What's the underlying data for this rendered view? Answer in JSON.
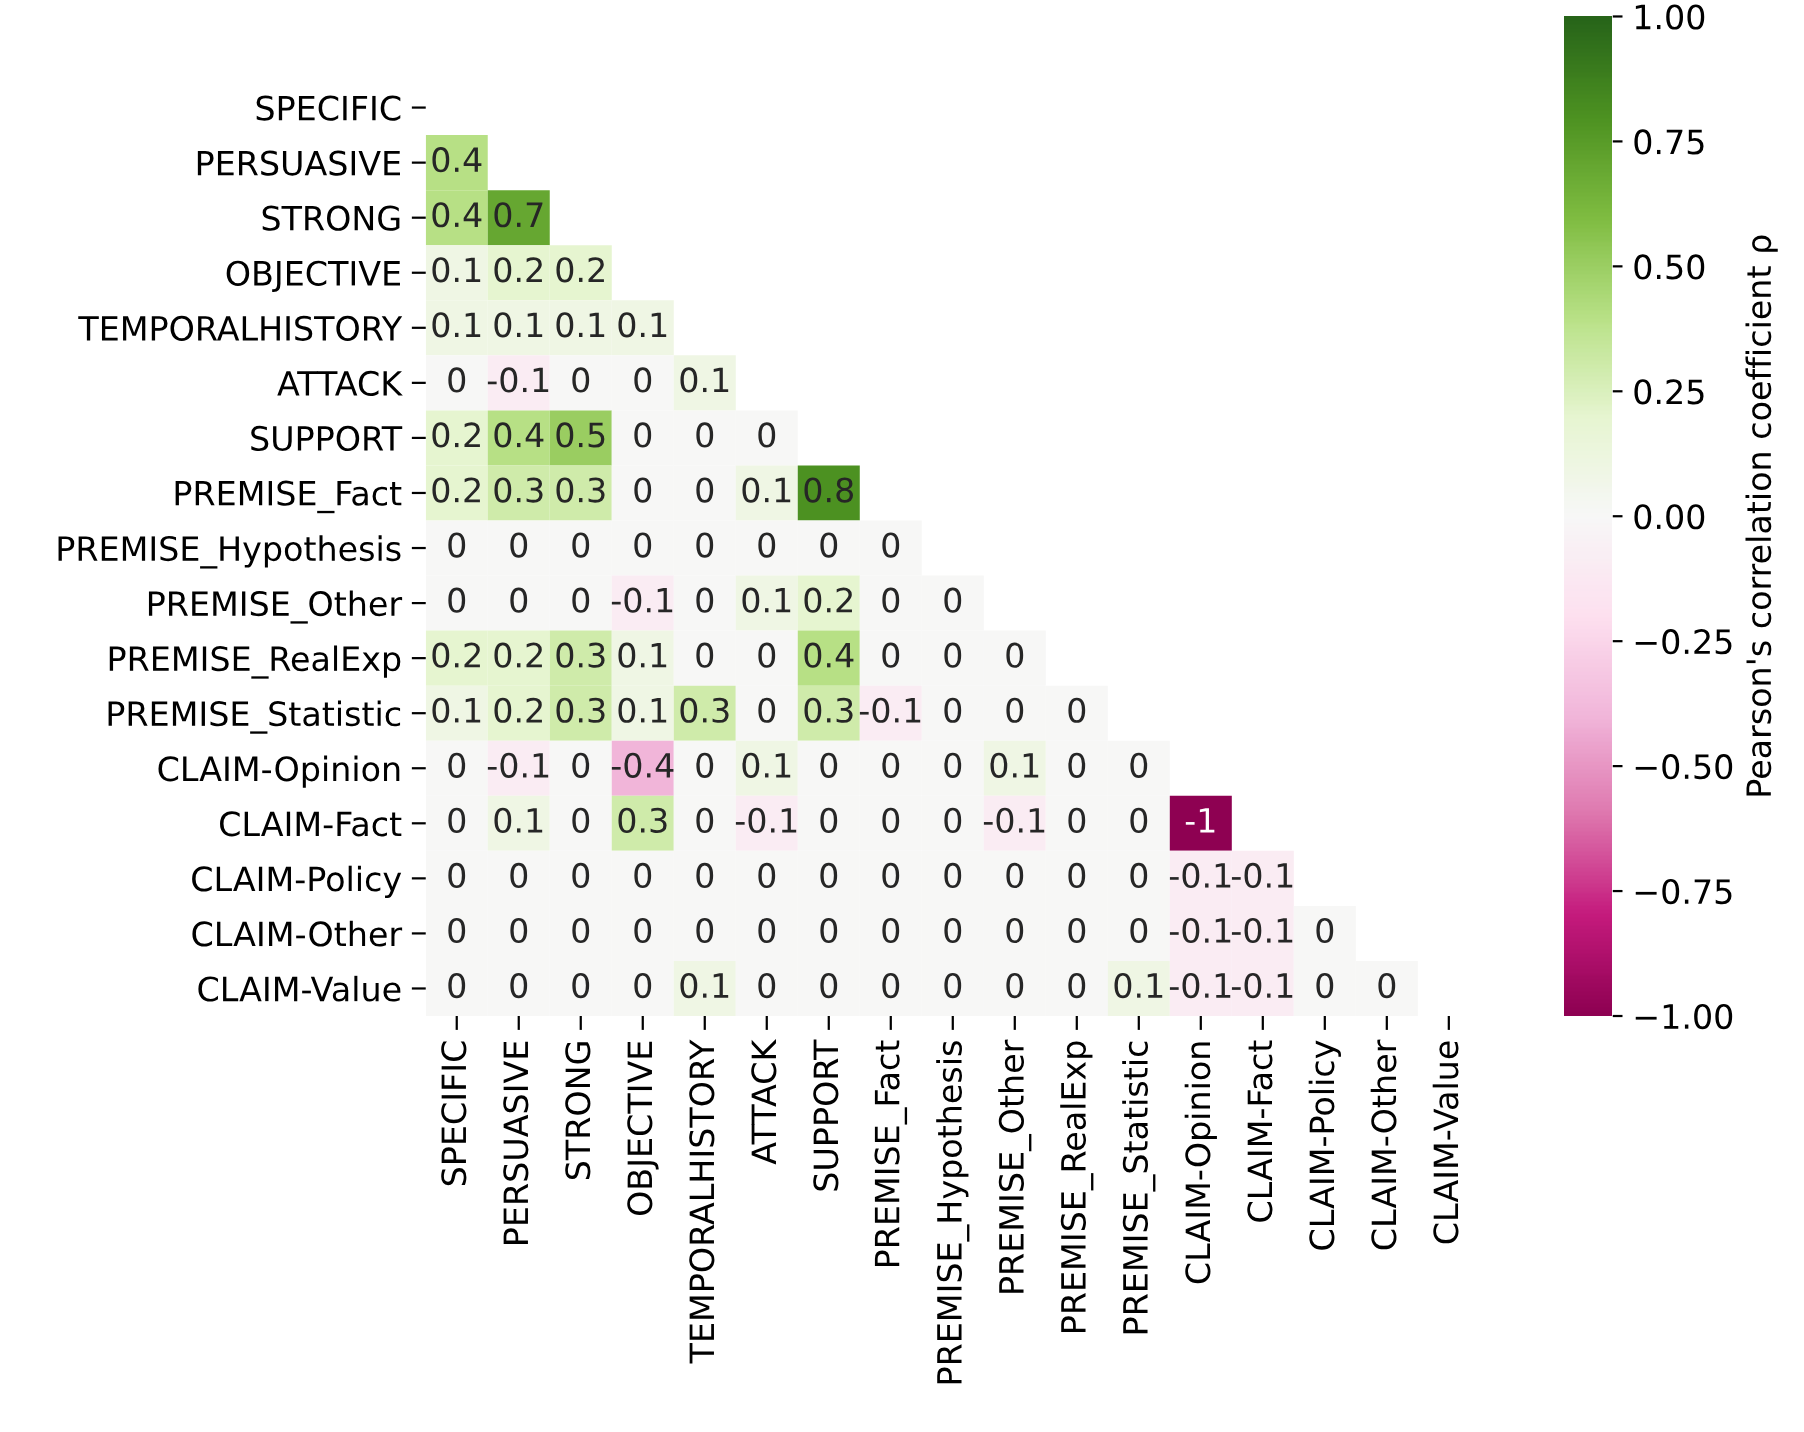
{
  "chart_data": {
    "type": "heatmap",
    "categories": [
      "SPECIFIC",
      "PERSUASIVE",
      "STRONG",
      "OBJECTIVE",
      "TEMPORALHISTORY",
      "ATTACK",
      "SUPPORT",
      "PREMISE_Fact",
      "PREMISE_Hypothesis",
      "PREMISE_Other",
      "PREMISE_RealExp",
      "PREMISE_Statistic",
      "CLAIM-Opinion",
      "CLAIM-Fact",
      "CLAIM-Policy",
      "CLAIM-Other",
      "CLAIM-Value"
    ],
    "y_categories": [
      "SPECIFIC",
      "PERSUASIVE",
      "STRONG",
      "OBJECTIVE",
      "TEMPORALHISTORY",
      "ATTACK",
      "SUPPORT",
      "PREMISE_Fact",
      "PREMISE_Hypothesis",
      "PREMISE_Other",
      "PREMISE_RealExp",
      "PREMISE_Statistic",
      "CLAIM-Opinion",
      "CLAIM-Fact",
      "CLAIM-Policy",
      "CLAIM-Other",
      "CLAIM-Value"
    ],
    "cells": [
      [
        null,
        null,
        null,
        null,
        null,
        null,
        null,
        null,
        null,
        null,
        null,
        null,
        null,
        null,
        null,
        null,
        null
      ],
      [
        0.4,
        null,
        null,
        null,
        null,
        null,
        null,
        null,
        null,
        null,
        null,
        null,
        null,
        null,
        null,
        null,
        null
      ],
      [
        0.4,
        0.7,
        null,
        null,
        null,
        null,
        null,
        null,
        null,
        null,
        null,
        null,
        null,
        null,
        null,
        null,
        null
      ],
      [
        0.1,
        0.2,
        0.2,
        null,
        null,
        null,
        null,
        null,
        null,
        null,
        null,
        null,
        null,
        null,
        null,
        null,
        null
      ],
      [
        0.1,
        0.1,
        0.1,
        0.1,
        null,
        null,
        null,
        null,
        null,
        null,
        null,
        null,
        null,
        null,
        null,
        null,
        null
      ],
      [
        0,
        -0.1,
        0,
        0,
        0.1,
        null,
        null,
        null,
        null,
        null,
        null,
        null,
        null,
        null,
        null,
        null,
        null
      ],
      [
        0.2,
        0.4,
        0.5,
        0,
        0,
        0,
        null,
        null,
        null,
        null,
        null,
        null,
        null,
        null,
        null,
        null,
        null
      ],
      [
        0.2,
        0.3,
        0.3,
        0,
        0,
        0.1,
        0.8,
        null,
        null,
        null,
        null,
        null,
        null,
        null,
        null,
        null,
        null
      ],
      [
        0,
        0,
        0,
        0,
        0,
        0,
        0,
        0,
        null,
        null,
        null,
        null,
        null,
        null,
        null,
        null,
        null
      ],
      [
        0,
        0,
        0,
        -0.1,
        0,
        0.1,
        0.2,
        0,
        0,
        null,
        null,
        null,
        null,
        null,
        null,
        null,
        null
      ],
      [
        0.2,
        0.2,
        0.3,
        0.1,
        0,
        0,
        0.4,
        0,
        0,
        0,
        null,
        null,
        null,
        null,
        null,
        null,
        null
      ],
      [
        0.1,
        0.2,
        0.3,
        0.1,
        0.3,
        0,
        0.3,
        -0.1,
        0,
        0,
        0,
        null,
        null,
        null,
        null,
        null,
        null
      ],
      [
        0,
        -0.1,
        0,
        -0.4,
        0,
        0.1,
        0,
        0,
        0,
        0.1,
        0,
        0,
        null,
        null,
        null,
        null,
        null
      ],
      [
        0,
        0.1,
        0,
        0.3,
        0,
        -0.1,
        0,
        0,
        0,
        -0.1,
        0,
        0,
        -1,
        null,
        null,
        null,
        null
      ],
      [
        0,
        0,
        0,
        0,
        0,
        0,
        0,
        0,
        0,
        0,
        0,
        0,
        -0.1,
        -0.1,
        null,
        null,
        null
      ],
      [
        0,
        0,
        0,
        0,
        0,
        0,
        0,
        0,
        0,
        0,
        0,
        0,
        -0.1,
        -0.1,
        0,
        null,
        null
      ],
      [
        0,
        0,
        0,
        0,
        0.1,
        0,
        0,
        0,
        0,
        0,
        0,
        0.1,
        -0.1,
        -0.1,
        0,
        0,
        null
      ]
    ],
    "clim": [
      -1,
      1
    ],
    "cticks": [
      {
        "value": -1,
        "label": "−1.00"
      },
      {
        "value": -0.75,
        "label": "−0.75"
      },
      {
        "value": -0.5,
        "label": "−0.50"
      },
      {
        "value": -0.25,
        "label": "−0.25"
      },
      {
        "value": 0,
        "label": "0.00"
      },
      {
        "value": 0.25,
        "label": "0.25"
      },
      {
        "value": 0.5,
        "label": "0.50"
      },
      {
        "value": 0.75,
        "label": "0.75"
      },
      {
        "value": 1,
        "label": "1.00"
      }
    ],
    "clabel": "Pearson's correlation coefficient ρ",
    "data_labels": true
  }
}
